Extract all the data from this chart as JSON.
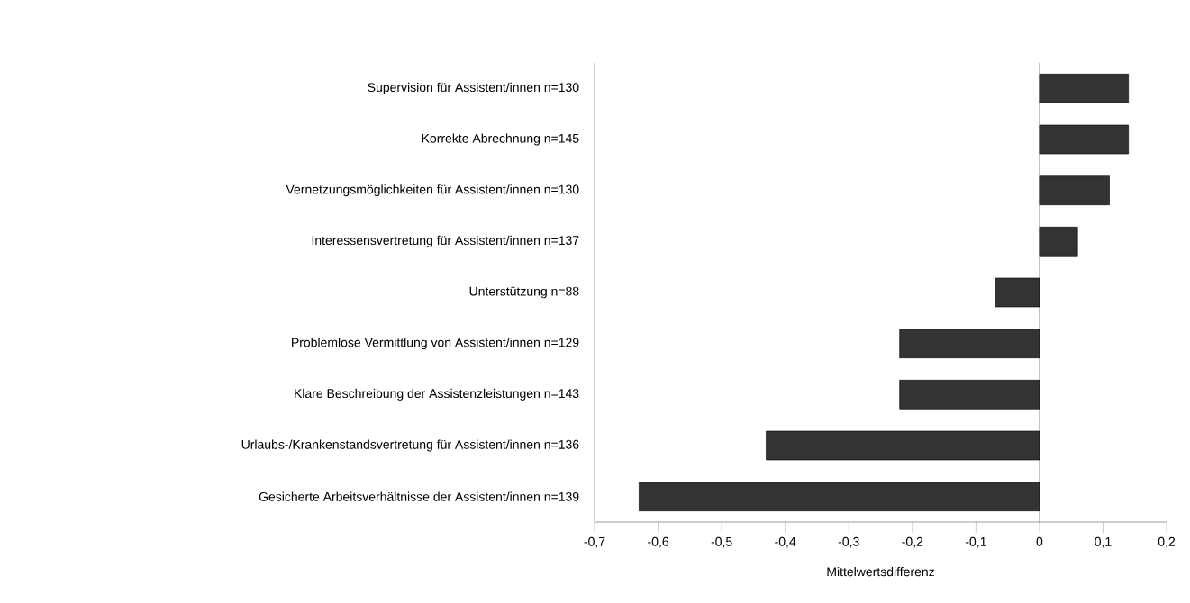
{
  "chart_data": {
    "type": "bar",
    "orientation": "horizontal",
    "xlabel": "Mittelwertsdifferenz",
    "categories": [
      "Supervision für Assistent/innen n=130",
      "Korrekte Abrechnung n=145",
      "Vernetzungsmöglichkeiten für Assistent/innen n=130",
      "Interessensvertretung für Assistent/innen n=137",
      "Unterstützung n=88",
      "Problemlose Vermittlung von Assistent/innen n=129",
      "Klare Beschreibung der Assistenzleistungen n=143",
      "Urlaubs-/Krankenstandsvertretung für Assistent/innen n=136",
      "Gesicherte Arbeitsverhältnisse der Assistent/innen n=139"
    ],
    "values": [
      0.14,
      0.14,
      0.11,
      0.06,
      -0.07,
      -0.22,
      -0.22,
      -0.43,
      -0.63
    ],
    "color": "#333333",
    "xlim": [
      -0.7,
      0.2
    ],
    "xticks": [
      {
        "value": -0.7,
        "label": "-0,7"
      },
      {
        "value": -0.6,
        "label": "-0,6"
      },
      {
        "value": -0.5,
        "label": "-0,5"
      },
      {
        "value": -0.4,
        "label": "-0,4"
      },
      {
        "value": -0.3,
        "label": "-0,3"
      },
      {
        "value": -0.2,
        "label": "-0,2"
      },
      {
        "value": -0.1,
        "label": "-0,1"
      },
      0,
      {
        "value": 0.1,
        "label": "0,1"
      },
      {
        "value": 0.2,
        "label": "0,2"
      }
    ]
  }
}
